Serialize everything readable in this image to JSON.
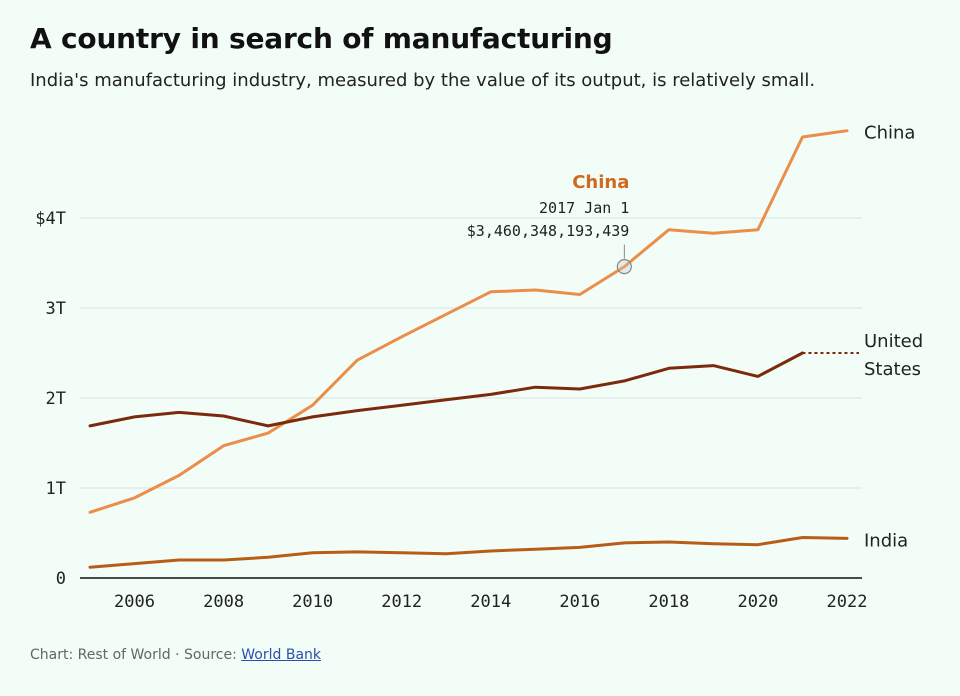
{
  "header": {
    "title": "A country in search of manufacturing",
    "subtitle": "India's manufacturing industry, measured by the value of its output, is relatively small."
  },
  "footer": {
    "prefix": "Chart: Rest of World · Source: ",
    "link_text": "World Bank"
  },
  "tooltip": {
    "series": "China",
    "date": "2017 Jan 1",
    "value": "$3,460,348,193,439"
  },
  "chart_data": {
    "type": "line",
    "title": "A country in search of manufacturing",
    "subtitle": "India's manufacturing industry, measured by the value of its output, is relatively small.",
    "xlabel": "",
    "ylabel": "",
    "xlim": [
      2005,
      2022
    ],
    "ylim": [
      0,
      5
    ],
    "grid": true,
    "x_ticks": [
      2006,
      2008,
      2010,
      2012,
      2014,
      2016,
      2018,
      2020,
      2022
    ],
    "y_ticks": [
      {
        "value": 0,
        "label": "0"
      },
      {
        "value": 1,
        "label": "1T"
      },
      {
        "value": 2,
        "label": "2T"
      },
      {
        "value": 3,
        "label": "3T"
      },
      {
        "value": 4,
        "label": "$4T"
      }
    ],
    "x": [
      2005,
      2006,
      2007,
      2008,
      2009,
      2010,
      2011,
      2012,
      2013,
      2014,
      2015,
      2016,
      2017,
      2018,
      2019,
      2020,
      2021,
      2022
    ],
    "series": [
      {
        "name": "China",
        "label_lines": [
          "China"
        ],
        "color": "#ea8e4a",
        "values": [
          0.73,
          0.89,
          1.14,
          1.47,
          1.61,
          1.92,
          2.42,
          2.68,
          2.93,
          3.18,
          3.2,
          3.15,
          3.46,
          3.87,
          3.83,
          3.87,
          4.9,
          4.97
        ]
      },
      {
        "name": "United States",
        "label_lines": [
          "United",
          "States"
        ],
        "color": "#7c2a0c",
        "dashed_last_segment": true,
        "values": [
          1.69,
          1.79,
          1.84,
          1.8,
          1.69,
          1.79,
          1.86,
          1.92,
          1.98,
          2.04,
          2.12,
          2.1,
          2.19,
          2.33,
          2.36,
          2.24,
          2.5,
          2.5
        ]
      },
      {
        "name": "India",
        "label_lines": [
          "India"
        ],
        "color": "#b85d18",
        "values": [
          0.12,
          0.16,
          0.2,
          0.2,
          0.23,
          0.28,
          0.29,
          0.28,
          0.27,
          0.3,
          0.32,
          0.34,
          0.39,
          0.4,
          0.38,
          0.37,
          0.45,
          0.44
        ]
      }
    ],
    "highlight": {
      "series": "China",
      "x": 2017,
      "y": 3.46,
      "title_color": "#d2691e"
    }
  }
}
